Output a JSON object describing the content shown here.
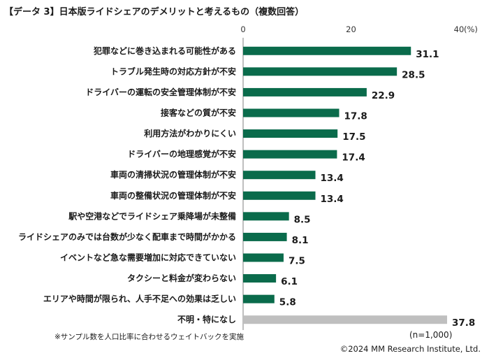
{
  "chart_data": {
    "type": "bar",
    "orientation": "horizontal",
    "title": "【データ 3】日本版ライドシェアのデメリットと考えるもの（複数回答）",
    "unit": "(%)",
    "xlim": [
      0,
      40
    ],
    "ticks": [
      0,
      20,
      40
    ],
    "categories": [
      "犯罪などに巻き込まれる可能性がある",
      "トラブル発生時の対応方針が不安",
      "ドライバーの運転の安全管理体制が不安",
      "接客などの質が不安",
      "利用方法がわかりにくい",
      "ドライバーの地理感覚が不安",
      "車両の清掃状況の管理体制が不安",
      "車両の整備状況の管理体制が不安",
      "駅や空港などでライドシェア乗降場が未整備",
      "ライドシェアのみでは台数が少なく配車まで時間がかかる",
      "イベントなど急な需要増加に対応できていない",
      "タクシーと料金が変わらない",
      "エリアや時間が限られ、人手不足への効果は乏しい",
      "不明・特になし"
    ],
    "values": [
      31.1,
      28.5,
      22.9,
      17.8,
      17.5,
      17.4,
      13.4,
      13.4,
      8.5,
      8.1,
      7.5,
      6.1,
      5.8,
      37.8
    ],
    "value_labels": [
      "31.1",
      "28.5",
      "22.9",
      "17.8",
      "17.5",
      "17.4",
      "13.4",
      "13.4",
      "8.5",
      "8.1",
      "7.5",
      "6.1",
      "5.8",
      "37.8"
    ],
    "colors": {
      "main": "#0a6b4b",
      "other": "#bfbfbf"
    },
    "grid": false
  },
  "note": "※サンプル数を人口比率に合わせるウェイトバックを実施",
  "sample_size": "(n=1,000)",
  "copyright": "©2024 MM Research Institute, Ltd."
}
